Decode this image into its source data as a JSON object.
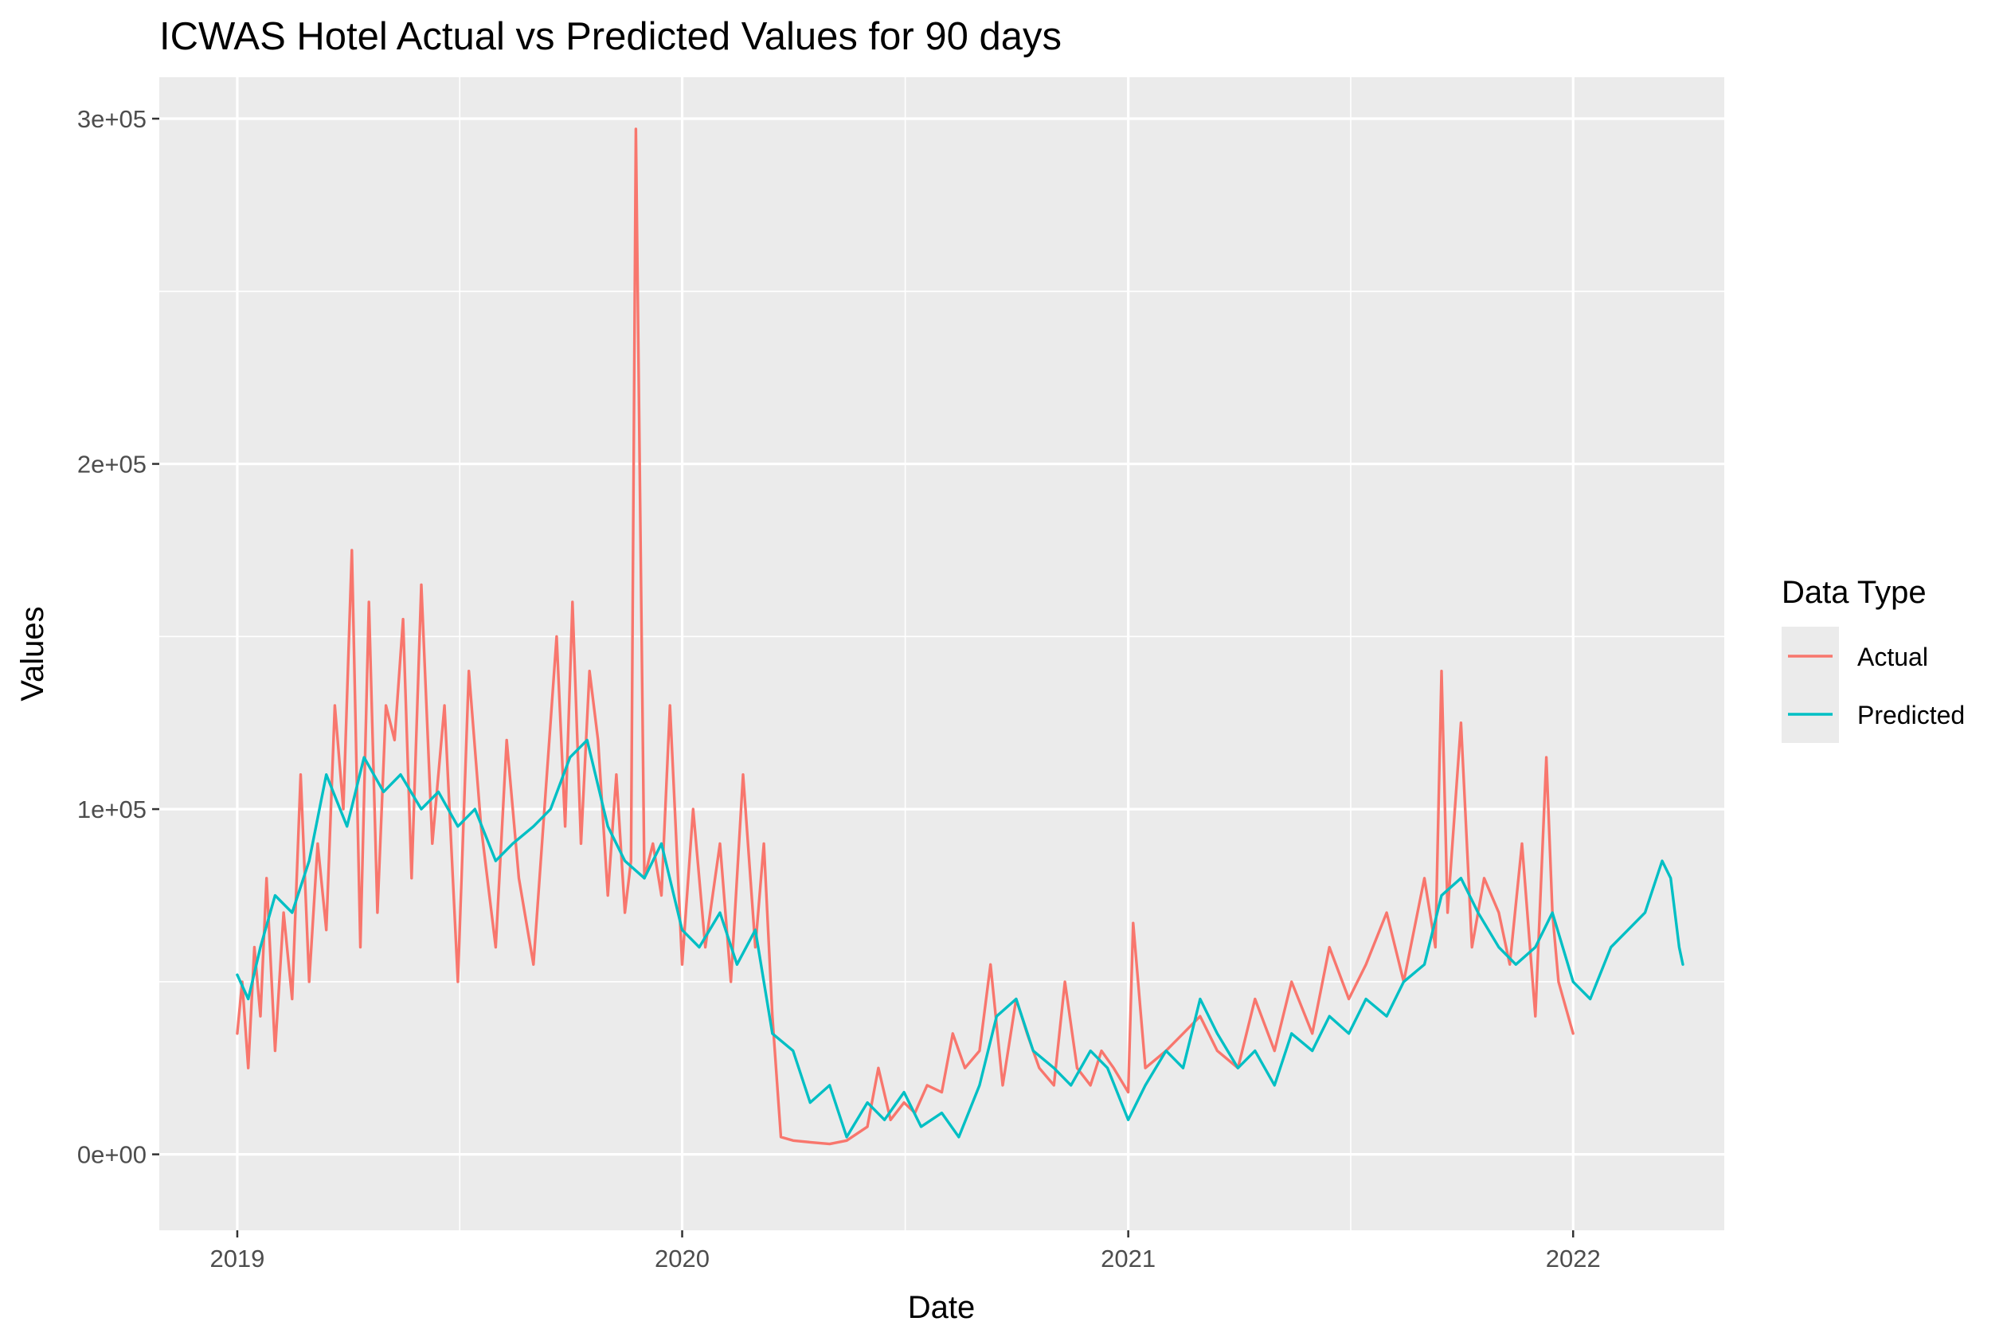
{
  "chart_data": {
    "type": "line",
    "title": "ICWAS Hotel Actual vs Predicted Values for 90 days",
    "xlabel": "Date",
    "ylabel": "Values",
    "x_type": "date",
    "xlim": [
      "2018-10-29",
      "2022-05-05"
    ],
    "ylim": [
      -22000,
      312000
    ],
    "x_ticks": [
      {
        "value": "2019-01-01",
        "label": "2019"
      },
      {
        "value": "2020-01-01",
        "label": "2020"
      },
      {
        "value": "2021-01-01",
        "label": "2021"
      },
      {
        "value": "2022-01-01",
        "label": "2022"
      }
    ],
    "y_ticks": [
      {
        "value": 0,
        "label": "0e+00"
      },
      {
        "value": 100000,
        "label": "1e+05"
      },
      {
        "value": 200000,
        "label": "2e+05"
      },
      {
        "value": 300000,
        "label": "3e+05"
      }
    ],
    "grid": true,
    "background": "#ebebeb",
    "legend": {
      "title": "Data Type",
      "position": "right"
    },
    "series": [
      {
        "name": "Actual",
        "color": "#f8766d",
        "x": [
          "2019-01-01",
          "2019-01-05",
          "2019-01-10",
          "2019-01-15",
          "2019-01-20",
          "2019-01-25",
          "2019-02-01",
          "2019-02-08",
          "2019-02-15",
          "2019-02-22",
          "2019-03-01",
          "2019-03-08",
          "2019-03-15",
          "2019-03-22",
          "2019-03-29",
          "2019-04-05",
          "2019-04-12",
          "2019-04-19",
          "2019-04-26",
          "2019-05-03",
          "2019-05-10",
          "2019-05-17",
          "2019-05-24",
          "2019-06-01",
          "2019-06-10",
          "2019-06-20",
          "2019-07-01",
          "2019-07-10",
          "2019-07-20",
          "2019-08-01",
          "2019-08-10",
          "2019-08-20",
          "2019-09-01",
          "2019-09-10",
          "2019-09-20",
          "2019-09-27",
          "2019-10-03",
          "2019-10-10",
          "2019-10-17",
          "2019-10-24",
          "2019-11-01",
          "2019-11-08",
          "2019-11-15",
          "2019-11-20",
          "2019-11-24",
          "2019-12-01",
          "2019-12-08",
          "2019-12-15",
          "2019-12-22",
          "2020-01-01",
          "2020-01-10",
          "2020-01-20",
          "2020-02-01",
          "2020-02-10",
          "2020-02-20",
          "2020-03-01",
          "2020-03-08",
          "2020-03-15",
          "2020-03-22",
          "2020-04-01",
          "2020-04-15",
          "2020-05-01",
          "2020-05-15",
          "2020-06-01",
          "2020-06-10",
          "2020-06-20",
          "2020-07-01",
          "2020-07-10",
          "2020-07-20",
          "2020-08-01",
          "2020-08-10",
          "2020-08-20",
          "2020-09-01",
          "2020-09-10",
          "2020-09-20",
          "2020-10-01",
          "2020-10-10",
          "2020-10-20",
          "2020-11-01",
          "2020-11-10",
          "2020-11-20",
          "2020-12-01",
          "2020-12-10",
          "2020-12-20",
          "2021-01-01",
          "2021-01-05",
          "2021-01-15",
          "2021-02-01",
          "2021-02-15",
          "2021-03-01",
          "2021-03-15",
          "2021-04-01",
          "2021-04-15",
          "2021-05-01",
          "2021-05-15",
          "2021-06-01",
          "2021-06-15",
          "2021-07-01",
          "2021-07-15",
          "2021-08-01",
          "2021-08-15",
          "2021-09-01",
          "2021-09-10",
          "2021-09-15",
          "2021-09-20",
          "2021-10-01",
          "2021-10-10",
          "2021-10-20",
          "2021-11-01",
          "2021-11-10",
          "2021-11-20",
          "2021-12-01",
          "2021-12-10",
          "2021-12-15",
          "2021-12-20",
          "2022-01-01"
        ],
        "values": [
          35000,
          50000,
          25000,
          60000,
          40000,
          80000,
          30000,
          70000,
          45000,
          110000,
          50000,
          90000,
          65000,
          130000,
          100000,
          175000,
          60000,
          160000,
          70000,
          130000,
          120000,
          155000,
          80000,
          165000,
          90000,
          130000,
          50000,
          140000,
          95000,
          60000,
          120000,
          80000,
          55000,
          100000,
          150000,
          95000,
          160000,
          90000,
          140000,
          120000,
          75000,
          110000,
          70000,
          85000,
          297000,
          80000,
          90000,
          75000,
          130000,
          55000,
          100000,
          60000,
          90000,
          50000,
          110000,
          60000,
          90000,
          40000,
          5000,
          4000,
          3500,
          3000,
          4000,
          8000,
          25000,
          10000,
          15000,
          12000,
          20000,
          18000,
          35000,
          25000,
          30000,
          55000,
          20000,
          45000,
          35000,
          25000,
          20000,
          50000,
          25000,
          20000,
          30000,
          25000,
          18000,
          67000,
          25000,
          30000,
          35000,
          40000,
          30000,
          25000,
          45000,
          30000,
          50000,
          35000,
          60000,
          45000,
          55000,
          70000,
          50000,
          80000,
          60000,
          140000,
          70000,
          125000,
          60000,
          80000,
          70000,
          55000,
          90000,
          40000,
          115000,
          70000,
          50000,
          35000
        ]
      },
      {
        "name": "Predicted",
        "color": "#00bfc4",
        "x": [
          "2019-01-01",
          "2019-01-10",
          "2019-01-20",
          "2019-02-01",
          "2019-02-15",
          "2019-03-01",
          "2019-03-15",
          "2019-04-01",
          "2019-04-15",
          "2019-05-01",
          "2019-05-15",
          "2019-06-01",
          "2019-06-15",
          "2019-07-01",
          "2019-07-15",
          "2019-08-01",
          "2019-08-15",
          "2019-09-01",
          "2019-09-15",
          "2019-10-01",
          "2019-10-15",
          "2019-11-01",
          "2019-11-15",
          "2019-12-01",
          "2019-12-15",
          "2020-01-01",
          "2020-01-15",
          "2020-02-01",
          "2020-02-15",
          "2020-03-01",
          "2020-03-15",
          "2020-04-01",
          "2020-04-15",
          "2020-05-01",
          "2020-05-15",
          "2020-06-01",
          "2020-06-15",
          "2020-07-01",
          "2020-07-15",
          "2020-08-01",
          "2020-08-15",
          "2020-09-01",
          "2020-09-15",
          "2020-10-01",
          "2020-10-15",
          "2020-11-01",
          "2020-11-15",
          "2020-12-01",
          "2020-12-15",
          "2021-01-01",
          "2021-01-15",
          "2021-02-01",
          "2021-02-15",
          "2021-03-01",
          "2021-03-15",
          "2021-04-01",
          "2021-04-15",
          "2021-05-01",
          "2021-05-15",
          "2021-06-01",
          "2021-06-15",
          "2021-07-01",
          "2021-07-15",
          "2021-08-01",
          "2021-08-15",
          "2021-09-01",
          "2021-09-15",
          "2021-10-01",
          "2021-10-15",
          "2021-11-01",
          "2021-11-15",
          "2021-12-01",
          "2021-12-15",
          "2022-01-01",
          "2022-01-15",
          "2022-02-01",
          "2022-02-15",
          "2022-03-01",
          "2022-03-15",
          "2022-03-22",
          "2022-03-29",
          "2022-04-01"
        ],
        "values": [
          52000,
          45000,
          60000,
          75000,
          70000,
          85000,
          110000,
          95000,
          115000,
          105000,
          110000,
          100000,
          105000,
          95000,
          100000,
          85000,
          90000,
          95000,
          100000,
          115000,
          120000,
          95000,
          85000,
          80000,
          90000,
          65000,
          60000,
          70000,
          55000,
          65000,
          35000,
          30000,
          15000,
          20000,
          5000,
          15000,
          10000,
          18000,
          8000,
          12000,
          5000,
          20000,
          40000,
          45000,
          30000,
          25000,
          20000,
          30000,
          25000,
          10000,
          20000,
          30000,
          25000,
          45000,
          35000,
          25000,
          30000,
          20000,
          35000,
          30000,
          40000,
          35000,
          45000,
          40000,
          50000,
          55000,
          75000,
          80000,
          70000,
          60000,
          55000,
          60000,
          70000,
          50000,
          45000,
          60000,
          65000,
          70000,
          85000,
          80000,
          60000,
          55000
        ]
      }
    ]
  }
}
